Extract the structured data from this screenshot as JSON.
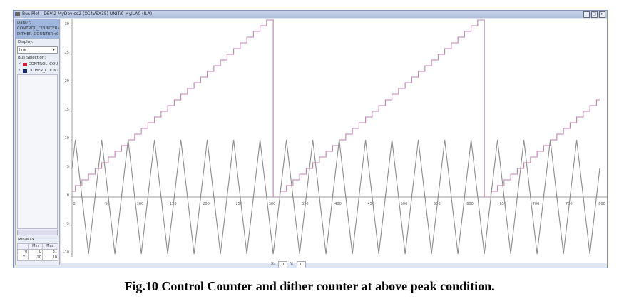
{
  "window": {
    "title": "Bus Plot - DEV:2 MyDevice2 (XC4VSX35) UNIT:0 MyILA0 (ILA)",
    "buttons": [
      "minimize",
      "restore",
      "close"
    ]
  },
  "left_panel": {
    "data_label": "Data/Y:",
    "selected": [
      "CONTROL_COUNTER<0>",
      "DITHER_COUNTER<0>"
    ],
    "display_label": "Display:",
    "display_value": "line",
    "bus_selection_label": "Bus Selection:",
    "buses": [
      {
        "label": "CONTROL_COU",
        "color": "#d0203a"
      },
      {
        "label": "DITHER_COUNT",
        "color": "#1a2a6a"
      }
    ],
    "minmax_label": "Min/Max",
    "minmax_headers": [
      "",
      "Min",
      "Max"
    ],
    "minmax_rows": [
      [
        "Y0",
        "0",
        "31"
      ],
      [
        "Y1",
        "-10",
        "10"
      ]
    ]
  },
  "status": {
    "x_label": "X:",
    "x_value": "0",
    "y_label": "Y:",
    "y_value": "0"
  },
  "caption": "Fig.10 Control Counter and dither counter at above peak condition.",
  "chart_data": {
    "type": "line",
    "title": "",
    "xlabel": "",
    "ylabel": "",
    "xlim": [
      0,
      820
    ],
    "ylim": [
      -10,
      31
    ],
    "x_ticks": [
      0,
      50,
      100,
      150,
      200,
      250,
      300,
      350,
      400,
      450,
      500,
      550,
      600,
      650,
      700,
      750,
      800
    ],
    "y_ticks": [
      30,
      25,
      20,
      15,
      10,
      5,
      0,
      -5,
      -10
    ],
    "grid": false,
    "legend": "none",
    "series": [
      {
        "key": "control",
        "color": "#c080b0",
        "step": true,
        "points": [
          [
            0,
            1
          ],
          [
            5,
            2
          ],
          [
            15,
            3
          ],
          [
            25,
            4
          ],
          [
            35,
            5
          ],
          [
            45,
            6
          ],
          [
            55,
            7
          ],
          [
            65,
            8
          ],
          [
            75,
            9
          ],
          [
            85,
            10
          ],
          [
            95,
            11
          ],
          [
            105,
            12
          ],
          [
            115,
            13
          ],
          [
            125,
            14
          ],
          [
            135,
            15
          ],
          [
            145,
            16
          ],
          [
            155,
            17
          ],
          [
            165,
            18
          ],
          [
            175,
            19
          ],
          [
            185,
            20
          ],
          [
            195,
            21
          ],
          [
            205,
            22
          ],
          [
            215,
            23
          ],
          [
            225,
            24
          ],
          [
            235,
            25
          ],
          [
            245,
            26
          ],
          [
            255,
            27
          ],
          [
            265,
            28
          ],
          [
            275,
            29
          ],
          [
            285,
            30
          ],
          [
            295,
            31
          ],
          [
            305,
            0
          ],
          [
            315,
            1
          ],
          [
            325,
            2
          ],
          [
            335,
            3
          ],
          [
            345,
            4
          ],
          [
            355,
            5
          ],
          [
            365,
            6
          ],
          [
            375,
            7
          ],
          [
            385,
            8
          ],
          [
            395,
            9
          ],
          [
            405,
            10
          ],
          [
            415,
            11
          ],
          [
            425,
            12
          ],
          [
            435,
            13
          ],
          [
            445,
            14
          ],
          [
            455,
            15
          ],
          [
            465,
            16
          ],
          [
            475,
            17
          ],
          [
            485,
            18
          ],
          [
            495,
            19
          ],
          [
            505,
            20
          ],
          [
            515,
            21
          ],
          [
            525,
            22
          ],
          [
            535,
            23
          ],
          [
            545,
            24
          ],
          [
            555,
            25
          ],
          [
            565,
            26
          ],
          [
            575,
            27
          ],
          [
            585,
            28
          ],
          [
            595,
            29
          ],
          [
            605,
            30
          ],
          [
            615,
            31
          ],
          [
            625,
            0
          ],
          [
            635,
            1
          ],
          [
            645,
            2
          ],
          [
            655,
            3
          ],
          [
            665,
            4
          ],
          [
            675,
            5
          ],
          [
            685,
            6
          ],
          [
            695,
            7
          ],
          [
            705,
            8
          ],
          [
            715,
            9
          ],
          [
            725,
            10
          ],
          [
            735,
            11
          ],
          [
            745,
            12
          ],
          [
            755,
            13
          ],
          [
            765,
            14
          ],
          [
            775,
            15
          ],
          [
            785,
            16
          ],
          [
            795,
            17
          ],
          [
            800,
            17
          ]
        ]
      },
      {
        "key": "dither",
        "color": "#8c8c8c",
        "step": false,
        "points": [
          [
            0,
            5
          ],
          [
            5,
            10
          ],
          [
            25,
            -10
          ],
          [
            45,
            10
          ],
          [
            65,
            -10
          ],
          [
            85,
            10
          ],
          [
            105,
            -10
          ],
          [
            125,
            10
          ],
          [
            145,
            -10
          ],
          [
            165,
            10
          ],
          [
            185,
            -10
          ],
          [
            205,
            10
          ],
          [
            225,
            -10
          ],
          [
            245,
            10
          ],
          [
            265,
            -10
          ],
          [
            285,
            10
          ],
          [
            305,
            -10
          ],
          [
            325,
            10
          ],
          [
            345,
            -10
          ],
          [
            365,
            10
          ],
          [
            385,
            -10
          ],
          [
            405,
            10
          ],
          [
            425,
            -10
          ],
          [
            445,
            10
          ],
          [
            465,
            -10
          ],
          [
            485,
            10
          ],
          [
            505,
            -10
          ],
          [
            525,
            10
          ],
          [
            545,
            -10
          ],
          [
            565,
            10
          ],
          [
            585,
            -10
          ],
          [
            605,
            10
          ],
          [
            625,
            -10
          ],
          [
            645,
            10
          ],
          [
            665,
            -10
          ],
          [
            685,
            10
          ],
          [
            705,
            -10
          ],
          [
            725,
            10
          ],
          [
            745,
            -10
          ],
          [
            765,
            10
          ],
          [
            785,
            -10
          ],
          [
            800,
            5
          ]
        ]
      }
    ]
  }
}
